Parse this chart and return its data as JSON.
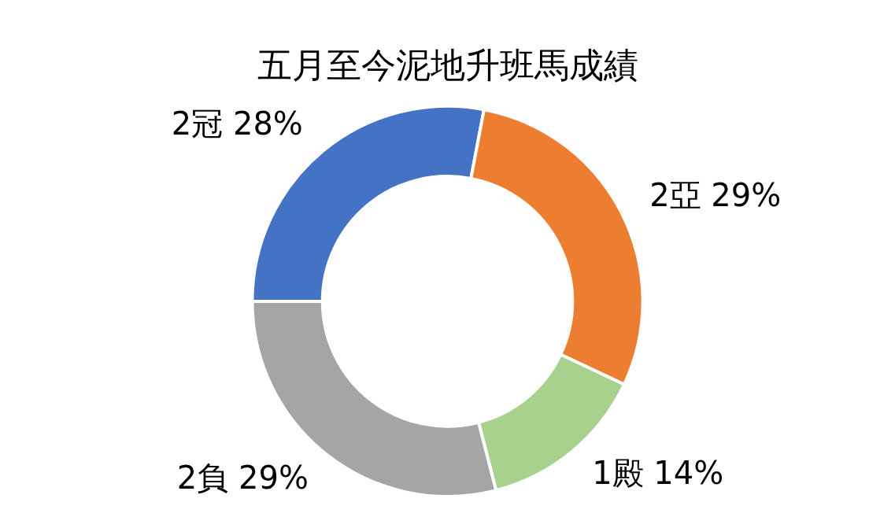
{
  "chart_data": {
    "type": "donut",
    "title": "五月至今泥地升班馬成績",
    "categories": [
      "2冠",
      "2亞",
      "1殿",
      "2負"
    ],
    "values": [
      28,
      29,
      14,
      29
    ],
    "value_labels": [
      "28%",
      "29%",
      "14%",
      "29%"
    ],
    "colors": [
      "#4472c4",
      "#ed7d31",
      "#a9d18e",
      "#a5a5a5"
    ],
    "legend": false
  }
}
